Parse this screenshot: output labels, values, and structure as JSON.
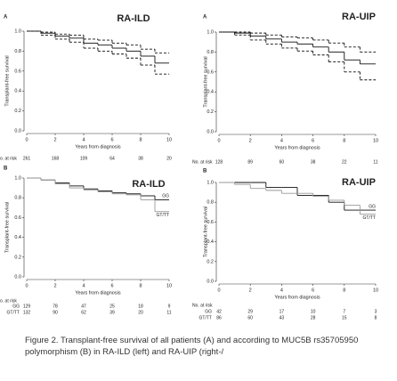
{
  "chart_data": [
    {
      "type": "survival",
      "label": "A",
      "title": "RA-ILD",
      "xlabel": "Years from diagnosis",
      "ylabel": "Transplant-free survival",
      "xlim": [
        0,
        10
      ],
      "xticks": [
        0,
        2,
        4,
        6,
        8,
        10
      ],
      "ylim": [
        0,
        1
      ],
      "yticks": [
        {
          "value": 0,
          "label": "0.0"
        },
        0.2,
        0.4,
        0.6,
        0.8,
        {
          "value": 1,
          "label": "1.0"
        }
      ],
      "x": [
        0,
        1,
        2,
        3,
        4,
        5,
        6,
        7,
        8,
        9,
        10
      ],
      "series": [
        {
          "color": "#111111",
          "dash": false,
          "values": [
            1,
            0.98,
            0.95,
            0.93,
            0.88,
            0.86,
            0.83,
            0.8,
            0.75,
            0.68,
            0.68
          ]
        },
        {
          "color": "#111111",
          "dash": true,
          "values": [
            1,
            0.99,
            0.97,
            0.96,
            0.92,
            0.91,
            0.88,
            0.86,
            0.82,
            0.78,
            0.78
          ]
        },
        {
          "color": "#111111",
          "dash": true,
          "values": [
            1,
            0.96,
            0.92,
            0.89,
            0.83,
            0.8,
            0.77,
            0.73,
            0.66,
            0.57,
            0.57
          ]
        }
      ],
      "risk_table": {
        "label": "o. at risk",
        "rows": [
          {
            "counts": [
              261,
              168,
              109,
              64,
              38,
              20
            ]
          }
        ]
      }
    },
    {
      "type": "survival",
      "label": "A",
      "title": "RA-UIP",
      "xlabel": "Years from diagnosis",
      "ylabel": "Transplant-free survival",
      "xlim": [
        0,
        10
      ],
      "xticks": [
        0,
        2,
        4,
        6,
        8,
        10
      ],
      "ylim": [
        0,
        1
      ],
      "yticks": [
        {
          "value": 0,
          "label": "0.0"
        },
        0.2,
        0.4,
        0.6,
        0.8,
        {
          "value": 1,
          "label": "1.0"
        }
      ],
      "x": [
        0,
        1,
        2,
        3,
        4,
        5,
        6,
        7,
        8,
        9,
        10
      ],
      "series": [
        {
          "color": "#111111",
          "dash": false,
          "values": [
            1,
            0.99,
            0.96,
            0.93,
            0.9,
            0.88,
            0.85,
            0.8,
            0.72,
            0.68,
            0.68
          ]
        },
        {
          "color": "#111111",
          "dash": true,
          "values": [
            1,
            1,
            0.99,
            0.97,
            0.95,
            0.94,
            0.92,
            0.89,
            0.85,
            0.8,
            0.8
          ]
        },
        {
          "color": "#111111",
          "dash": true,
          "values": [
            1,
            0.97,
            0.92,
            0.88,
            0.84,
            0.81,
            0.77,
            0.7,
            0.6,
            0.52,
            0.52
          ]
        }
      ],
      "risk_table": {
        "label": "No. at risk",
        "rows": [
          {
            "counts": [
              128,
              89,
              60,
              38,
              22,
              11
            ]
          }
        ]
      }
    },
    {
      "type": "survival",
      "label": "B",
      "title": "RA-ILD",
      "xlabel": "Years from diagnosis",
      "ylabel": "Transplant-free survival",
      "xlim": [
        0,
        10
      ],
      "xticks": [
        0,
        2,
        4,
        6,
        8,
        10
      ],
      "ylim": [
        0,
        1
      ],
      "yticks": [
        {
          "value": 0,
          "label": "0.0"
        },
        0.2,
        0.4,
        0.6,
        0.8,
        {
          "value": 1,
          "label": "1.0"
        }
      ],
      "x": [
        0,
        1,
        2,
        3,
        4,
        5,
        6,
        7,
        8,
        9,
        10
      ],
      "series": [
        {
          "name": "GG",
          "color": "#111111",
          "dash": false,
          "values": [
            1,
            0.98,
            0.95,
            0.92,
            0.89,
            0.87,
            0.85,
            0.84,
            0.82,
            0.78,
            0.78
          ]
        },
        {
          "name": "GT/TT",
          "color": "#999999",
          "dash": false,
          "values": [
            1,
            0.98,
            0.94,
            0.9,
            0.88,
            0.86,
            0.84,
            0.83,
            0.78,
            0.66,
            0.66
          ]
        }
      ],
      "risk_table": {
        "label": "o. at risk",
        "rows": [
          {
            "name": "GG",
            "counts": [
              129,
              78,
              47,
              25,
              18,
              9
            ]
          },
          {
            "name": "GT/TT",
            "counts": [
              132,
              90,
              62,
              39,
              20,
              11
            ]
          }
        ]
      }
    },
    {
      "type": "survival",
      "label": "B",
      "title": "RA-UIP",
      "xlabel": "Years from diagnosis",
      "ylabel": "Transplant-free survival",
      "xlim": [
        0,
        10
      ],
      "xticks": [
        0,
        2,
        4,
        6,
        8,
        10
      ],
      "ylim": [
        0,
        1
      ],
      "yticks": [
        {
          "value": 0,
          "label": "0.0"
        },
        0.2,
        0.4,
        0.6,
        0.8,
        {
          "value": 1,
          "label": "1.0"
        }
      ],
      "x": [
        0,
        1,
        2,
        3,
        4,
        5,
        6,
        7,
        8,
        9,
        10
      ],
      "series": [
        {
          "name": "GG",
          "color": "#111111",
          "dash": false,
          "values": [
            1,
            1,
            1,
            0.95,
            0.95,
            0.87,
            0.87,
            0.8,
            0.72,
            0.72,
            0.72
          ]
        },
        {
          "name": "GT/TT",
          "color": "#999999",
          "dash": false,
          "values": [
            1,
            0.98,
            0.94,
            0.92,
            0.89,
            0.89,
            0.86,
            0.82,
            0.77,
            0.68,
            0.68
          ]
        }
      ],
      "risk_table": {
        "label": "No. at risk",
        "rows": [
          {
            "name": "GG",
            "counts": [
              42,
              29,
              17,
              10,
              7,
              3
            ]
          },
          {
            "name": "GT/TT",
            "counts": [
              86,
              60,
              43,
              28,
              15,
              8
            ]
          }
        ]
      }
    }
  ],
  "caption": "Figure 2. Transplant-free survival of all patients (A) and according to MUC5B rs35705950 polymorphism (B) in RA-ILD (left) and RA-UIP (right-/"
}
